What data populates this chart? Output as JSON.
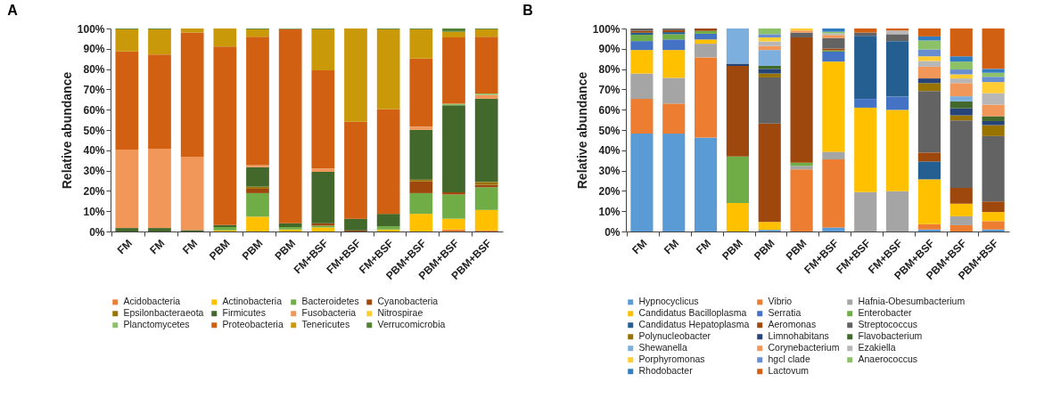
{
  "chart_data": [
    {
      "type": "bar",
      "title": "A",
      "ylabel": "Relative abundance",
      "stacked": true,
      "legend": "bottom",
      "ylim": [
        0,
        100
      ],
      "yticks": [
        {
          "value": 0,
          "label": "0%"
        },
        {
          "value": 10,
          "label": "10%"
        },
        {
          "value": 20,
          "label": "20%"
        },
        {
          "value": 30,
          "label": "30%"
        },
        {
          "value": 40,
          "label": "40%"
        },
        {
          "value": 50,
          "label": "50%"
        },
        {
          "value": 60,
          "label": "60%"
        },
        {
          "value": 70,
          "label": "70%"
        },
        {
          "value": 80,
          "label": "80%"
        },
        {
          "value": 90,
          "label": "90%"
        },
        {
          "value": 100,
          "label": "100%"
        }
      ],
      "categories": [
        "FM",
        "FM",
        "FM",
        "PBM",
        "PBM",
        "PBM",
        "FM+BSF",
        "FM+BSF",
        "FM+BSF",
        "PBM+BSF",
        "PBM+BSF",
        "PBM+BSF"
      ],
      "series": [
        {
          "name": "Acidobacteria",
          "color": "#ed7d31",
          "values": [
            0,
            0,
            0,
            0,
            0,
            0,
            0,
            0,
            0,
            0,
            1,
            0.5
          ]
        },
        {
          "name": "Actinobacteria",
          "color": "#ffc000",
          "values": [
            0,
            0,
            0,
            0.5,
            7.3,
            1,
            2,
            0,
            1,
            8.7,
            5.3,
            10.1
          ]
        },
        {
          "name": "Bacteroidetes",
          "color": "#70ad47",
          "values": [
            0,
            0,
            0,
            1.7,
            11.6,
            1.2,
            0.9,
            0,
            1.6,
            10.2,
            11.9,
            11.2
          ]
        },
        {
          "name": "Cyanobacteria",
          "color": "#9e480e",
          "values": [
            0,
            0,
            0,
            0,
            2.2,
            0,
            1.2,
            0.5,
            0,
            5.8,
            1.1,
            1.2
          ]
        },
        {
          "name": "Epsilonbacteraeota",
          "color": "#997300",
          "values": [
            0,
            0,
            0,
            0,
            1,
            0,
            0,
            0,
            0,
            0.9,
            0,
            1.4
          ]
        },
        {
          "name": "Firmicutes",
          "color": "#43682b",
          "values": [
            1.7,
            1.7,
            0.7,
            1,
            9.6,
            1.9,
            25.3,
            5.8,
            6.1,
            24.5,
            42.9,
            41
          ]
        },
        {
          "name": "Fusobacteria",
          "color": "#f1975a",
          "values": [
            38.6,
            39.1,
            36.1,
            0,
            1,
            0,
            1.6,
            0,
            0,
            1.5,
            0,
            1.9
          ]
        },
        {
          "name": "Nitrospirae",
          "color": "#ffcd33",
          "values": [
            0,
            0,
            0,
            0,
            0,
            0,
            0,
            0,
            0,
            0,
            0,
            0
          ]
        },
        {
          "name": "Planctomycetes",
          "color": "#8cc168",
          "values": [
            0,
            0,
            0,
            0,
            0,
            0,
            0,
            0,
            0,
            0,
            0.7,
            0.7
          ]
        },
        {
          "name": "Proteobacteria",
          "color": "#d26012",
          "values": [
            48.4,
            46.4,
            61.2,
            87.9,
            63.2,
            95.6,
            48.4,
            47.8,
            51.5,
            33.6,
            32.7,
            27.9
          ]
        },
        {
          "name": "Tenericutes",
          "color": "#c9990a",
          "values": [
            10.9,
            12.4,
            2,
            8.9,
            3.7,
            0,
            20.2,
            45.9,
            39.4,
            14.4,
            2.8,
            3.7
          ]
        },
        {
          "name": "Verrucomicrobia",
          "color": "#548235",
          "values": [
            0.4,
            0.4,
            0,
            0,
            0.4,
            0.3,
            0.4,
            0,
            0.4,
            0.4,
            1.6,
            0.4
          ]
        }
      ]
    },
    {
      "type": "bar",
      "title": "B",
      "ylabel": "Relative abundance",
      "stacked": true,
      "legend": "bottom",
      "ylim": [
        0,
        100
      ],
      "yticks": [
        {
          "value": 0,
          "label": "0%"
        },
        {
          "value": 10,
          "label": "10%"
        },
        {
          "value": 20,
          "label": "20%"
        },
        {
          "value": 30,
          "label": "30%"
        },
        {
          "value": 40,
          "label": "40%"
        },
        {
          "value": 50,
          "label": "50%"
        },
        {
          "value": 60,
          "label": "60%"
        },
        {
          "value": 70,
          "label": "70%"
        },
        {
          "value": 80,
          "label": "80%"
        },
        {
          "value": 90,
          "label": "90%"
        },
        {
          "value": 100,
          "label": "100%"
        }
      ],
      "categories": [
        "FM",
        "FM",
        "FM",
        "PBM",
        "PBM",
        "PBM",
        "FM+BSF",
        "FM+BSF",
        "FM+BSF",
        "PBM+BSF",
        "PBM+BSF",
        "PBM+BSF"
      ],
      "series": [
        {
          "name": "Hypnocyclicus",
          "color": "#5b9bd5",
          "values": [
            48.2,
            48.2,
            46.3,
            0,
            0.8,
            0,
            2,
            0,
            0,
            1,
            0,
            1
          ]
        },
        {
          "name": "Vibrio",
          "color": "#ed7d31",
          "values": [
            17.1,
            14.8,
            39.5,
            0,
            0,
            30.6,
            33.5,
            0,
            0,
            2.6,
            3.1,
            4.1
          ]
        },
        {
          "name": "Hafnia-Obesumbacterium",
          "color": "#a5a5a5",
          "values": [
            12.5,
            12.7,
            6.7,
            0,
            0,
            1.7,
            3.8,
            19.4,
            19.9,
            0,
            4.4,
            0
          ]
        },
        {
          "name": "Candidatus Bacilloplasma",
          "color": "#ffc000",
          "values": [
            11.6,
            13.7,
            2.1,
            14,
            3.9,
            0,
            44.4,
            41.6,
            40,
            22.1,
            6.2,
            4.5
          ]
        },
        {
          "name": "Serratia",
          "color": "#4472c4",
          "values": [
            4.4,
            5.2,
            2.8,
            0,
            0,
            0,
            4.9,
            4.3,
            6.5,
            0,
            0,
            0
          ]
        },
        {
          "name": "Enterobacter",
          "color": "#70ad47",
          "values": [
            3.1,
            2.6,
            1.4,
            22.9,
            0,
            1.6,
            0.6,
            0,
            0,
            0,
            0,
            0
          ]
        },
        {
          "name": "Candidatus Hepatoplasma",
          "color": "#255e91",
          "values": [
            1,
            1,
            0,
            0,
            0,
            0,
            0,
            31.1,
            27.4,
            8.8,
            0,
            0
          ]
        },
        {
          "name": "Aeromonas",
          "color": "#9e480e",
          "values": [
            1,
            1,
            1.2,
            44.7,
            48.5,
            61.7,
            0.9,
            0,
            0,
            4.4,
            7.8,
            5.2
          ]
        },
        {
          "name": "Streptococcus",
          "color": "#636363",
          "values": [
            1.1,
            0.8,
            0,
            0,
            22.7,
            2.4,
            5.2,
            1.6,
            3.4,
            30.3,
            33.2,
            32.2
          ]
        },
        {
          "name": "Polynucleobacter",
          "color": "#997300",
          "values": [
            0,
            0,
            0,
            0,
            1.9,
            0,
            0,
            0,
            0,
            3.9,
            2.5,
            5.4
          ]
        },
        {
          "name": "Limnohabitans",
          "color": "#264478",
          "values": [
            0,
            0,
            0,
            1.1,
            2.3,
            0,
            0,
            0,
            0,
            2.3,
            3.5,
            2
          ]
        },
        {
          "name": "Flavobacterium",
          "color": "#43682b",
          "values": [
            0,
            0,
            0,
            0,
            1.5,
            0,
            0,
            0,
            0,
            0,
            3.4,
            2.4
          ]
        },
        {
          "name": "Shewanella",
          "color": "#7cafdd",
          "values": [
            0,
            0,
            0,
            17.3,
            7.8,
            0,
            0,
            0,
            0,
            0,
            2.5,
            0
          ]
        },
        {
          "name": "Corynebacterium",
          "color": "#f1975a",
          "values": [
            0,
            0,
            0,
            0,
            2,
            1,
            1.5,
            0,
            0,
            5.8,
            6.5,
            5.7
          ]
        },
        {
          "name": "Ezakiella",
          "color": "#b7b7b7",
          "values": [
            0,
            0,
            0,
            0,
            2.2,
            0,
            0.8,
            0,
            1.8,
            2.8,
            2.3,
            5.6
          ]
        },
        {
          "name": "Porphyromonas",
          "color": "#ffcd33",
          "values": [
            0,
            0,
            0,
            0,
            2,
            1,
            0,
            0,
            0,
            2.3,
            2,
            5.5
          ]
        },
        {
          "name": "hgcl clade",
          "color": "#698ed0",
          "values": [
            0,
            0,
            0,
            0,
            1.6,
            0,
            0,
            0,
            0,
            3.4,
            2.4,
            2.6
          ]
        },
        {
          "name": "Anaerococcus",
          "color": "#8cc168",
          "values": [
            0,
            0,
            0,
            0,
            2.8,
            0,
            0.8,
            0,
            0,
            4.4,
            3.9,
            2
          ]
        },
        {
          "name": "Rhodobacter",
          "color": "#327dc2",
          "values": [
            0,
            0,
            0,
            0,
            0,
            0,
            1.6,
            0,
            0,
            2,
            2.6,
            1.9
          ]
        },
        {
          "name": "Lactovum",
          "color": "#d26012",
          "values": [
            0,
            0,
            0,
            0,
            0,
            0,
            0,
            2,
            1,
            3.9,
            13.7,
            19.9
          ]
        }
      ]
    }
  ]
}
